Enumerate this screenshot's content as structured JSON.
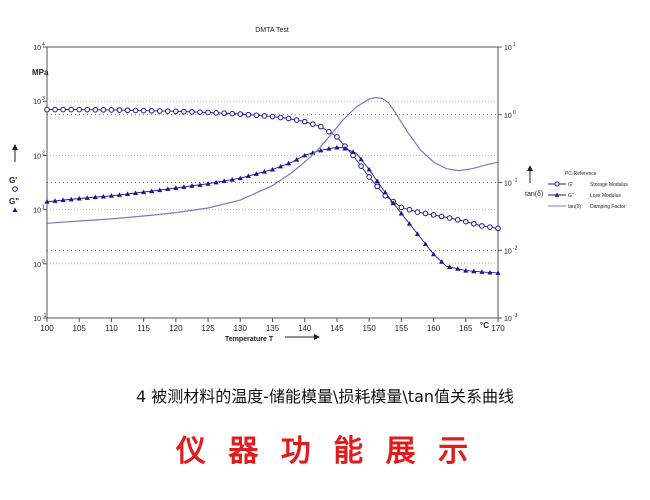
{
  "chart_data": {
    "type": "line",
    "title": "DMTA Test",
    "xlabel": "Temperature T",
    "x_unit": "°C",
    "x_range": [
      100,
      170
    ],
    "x_ticks": [
      100,
      105,
      110,
      115,
      120,
      125,
      130,
      135,
      140,
      145,
      150,
      155,
      160,
      165,
      170
    ],
    "left_axis": {
      "unit": "MPa",
      "scale": "log",
      "range": [
        0.1,
        10000
      ],
      "tick_labels": [
        "10^-1",
        "10^0",
        "10^1",
        "10^2",
        "10^3",
        "10^4"
      ],
      "labels": [
        "G'",
        "G\""
      ]
    },
    "right_axis": {
      "label": "tan(δ)",
      "scale": "log",
      "range": [
        0.001,
        10
      ],
      "tick_labels": [
        "10^-3",
        "10^-2",
        "10^-1",
        "10^0",
        "10^1"
      ]
    },
    "legend": {
      "title": "PC-Reference",
      "position": "right",
      "entries": [
        {
          "symbol": "G'",
          "label": "Storage Modulus"
        },
        {
          "symbol": "G\"",
          "label": "Loss Modulus"
        },
        {
          "symbol": "tan(δ)",
          "label": "Damping Factor"
        }
      ]
    },
    "grid": "dotted horizontal",
    "series": [
      {
        "name": "G'",
        "axis": "left",
        "marker": "circle",
        "color": "#1a1a8c",
        "x": [
          100,
          105,
          110,
          115,
          120,
          125,
          130,
          135,
          137.5,
          140,
          142.5,
          145,
          147.5,
          150,
          152.5,
          155,
          157.5,
          160,
          162.5,
          165,
          167.5,
          170
        ],
        "y": [
          700,
          700,
          690,
          670,
          650,
          620,
          580,
          520,
          480,
          420,
          340,
          220,
          100,
          40,
          18,
          11,
          9,
          8,
          7,
          6,
          5,
          4.5
        ]
      },
      {
        "name": "G\"",
        "axis": "left",
        "marker": "triangle",
        "color": "#1a1a8c",
        "x": [
          100,
          105,
          110,
          115,
          120,
          125,
          130,
          135,
          138,
          140,
          142,
          144,
          145,
          146,
          148,
          150,
          152,
          154,
          156,
          158,
          160,
          162,
          165,
          168,
          170
        ],
        "y": [
          14,
          16,
          18,
          21,
          25,
          30,
          38,
          55,
          75,
          100,
          120,
          135,
          140,
          138,
          110,
          55,
          25,
          12,
          6,
          3,
          1.5,
          0.9,
          0.75,
          0.7,
          0.68
        ]
      },
      {
        "name": "tan(δ)",
        "axis": "right",
        "marker": "none",
        "color": "#7a78c8",
        "x": [
          100,
          105,
          110,
          115,
          120,
          125,
          130,
          135,
          138,
          140,
          142,
          144,
          146,
          148,
          150,
          151,
          152,
          153,
          154,
          156,
          158,
          160,
          162,
          164,
          166,
          168,
          170
        ],
        "y": [
          0.025,
          0.027,
          0.029,
          0.032,
          0.036,
          0.042,
          0.055,
          0.09,
          0.14,
          0.2,
          0.3,
          0.5,
          0.85,
          1.3,
          1.7,
          1.8,
          1.75,
          1.5,
          1.1,
          0.55,
          0.3,
          0.2,
          0.16,
          0.15,
          0.16,
          0.18,
          0.2
        ]
      }
    ]
  },
  "caption": "4 被测材料的温度-储能模量\\损耗模量\\tan值关系曲线",
  "banner": "仪 器 功 能 展 示"
}
